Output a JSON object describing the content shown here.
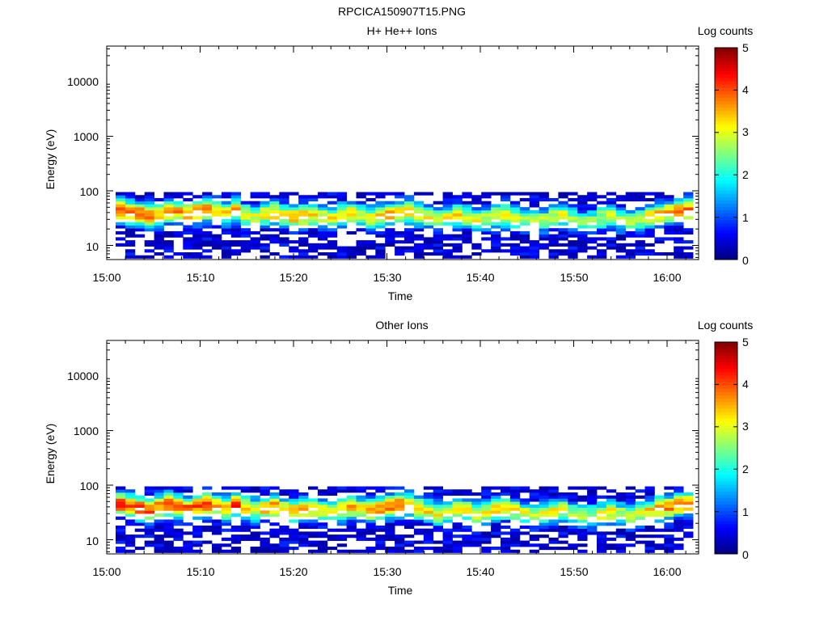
{
  "figure": {
    "title": "RPCICA150907T15.PNG"
  },
  "chart_data": [
    {
      "type": "heatmap",
      "title": "H+ He++ Ions",
      "xlabel": "Time",
      "ylabel": "Energy (eV)",
      "x_ticks": [
        "15:00",
        "15:10",
        "15:20",
        "15:30",
        "15:40",
        "15:50",
        "16:00"
      ],
      "x_range": [
        "15:00",
        "16:03"
      ],
      "y_ticks": [
        "10",
        "100",
        "1000",
        "10000"
      ],
      "y_scale": "log",
      "y_range": [
        5.5,
        45000
      ],
      "colorbar": {
        "label": "Log counts",
        "ticks": [
          "0",
          "1",
          "2",
          "3",
          "4",
          "5"
        ],
        "range": [
          0,
          5
        ],
        "colormap": "jet"
      },
      "peak_energy_eV": [
        45,
        40,
        38,
        35,
        36,
        42,
        40,
        38,
        42,
        45,
        40,
        38,
        44,
        36,
        34,
        38,
        40,
        36,
        33,
        35,
        37,
        34,
        32,
        36,
        38,
        35,
        32,
        34,
        38,
        40,
        42,
        38,
        34,
        30,
        32,
        35,
        33,
        30,
        31,
        34,
        36,
        32,
        30,
        28,
        29,
        33,
        35,
        30,
        27,
        28,
        32,
        34,
        30,
        28,
        31,
        35,
        38,
        40,
        44,
        45
      ],
      "peak_log_counts": [
        4.2,
        3.9,
        4.0,
        3.8,
        3.5,
        3.8,
        3.6,
        3.7,
        3.9,
        3.8,
        3.6,
        3.4,
        3.7,
        3.3,
        3.1,
        3.4,
        3.5,
        3.2,
        3.6,
        3.7,
        3.5,
        3.2,
        3.0,
        3.3,
        3.4,
        3.1,
        3.3,
        3.5,
        3.7,
        3.6,
        3.4,
        3.2,
        3.0,
        2.8,
        3.0,
        3.2,
        3.1,
        2.9,
        3.0,
        3.2,
        3.3,
        3.0,
        2.8,
        2.7,
        2.8,
        3.0,
        3.1,
        2.8,
        2.6,
        2.7,
        2.9,
        3.0,
        2.8,
        2.7,
        2.9,
        3.2,
        3.4,
        3.5,
        3.7,
        3.8
      ]
    },
    {
      "type": "heatmap",
      "title": "Other Ions",
      "xlabel": "Time",
      "ylabel": "Energy (eV)",
      "x_ticks": [
        "15:00",
        "15:10",
        "15:20",
        "15:30",
        "15:40",
        "15:50",
        "16:00"
      ],
      "x_range": [
        "15:00",
        "16:03"
      ],
      "y_ticks": [
        "10",
        "100",
        "1000",
        "10000"
      ],
      "y_scale": "log",
      "y_range": [
        5.5,
        45000
      ],
      "colorbar": {
        "label": "Log counts",
        "ticks": [
          "0",
          "1",
          "2",
          "3",
          "4",
          "5"
        ],
        "range": [
          0,
          5
        ],
        "colormap": "jet"
      },
      "peak_energy_eV": [
        45,
        42,
        38,
        36,
        40,
        44,
        40,
        36,
        42,
        45,
        42,
        38,
        44,
        40,
        36,
        38,
        40,
        35,
        34,
        36,
        38,
        34,
        32,
        36,
        40,
        36,
        34,
        38,
        42,
        44,
        42,
        38,
        34,
        30,
        32,
        36,
        34,
        30,
        32,
        36,
        38,
        34,
        30,
        28,
        30,
        34,
        36,
        30,
        28,
        28,
        30,
        32,
        30,
        28,
        30,
        34,
        38,
        40,
        44,
        46
      ],
      "peak_log_counts": [
        4.3,
        4.1,
        4.2,
        4.0,
        3.9,
        4.2,
        4.0,
        4.1,
        4.2,
        4.1,
        3.8,
        3.6,
        4.0,
        3.4,
        3.2,
        3.6,
        3.8,
        3.4,
        3.5,
        3.6,
        3.4,
        3.2,
        3.0,
        3.4,
        3.6,
        3.3,
        3.5,
        3.7,
        4.0,
        3.9,
        3.6,
        3.4,
        3.2,
        3.0,
        3.1,
        3.3,
        3.2,
        3.0,
        3.1,
        3.3,
        3.5,
        3.2,
        3.0,
        2.8,
        2.9,
        3.1,
        3.2,
        2.9,
        2.7,
        2.8,
        3.0,
        3.1,
        2.9,
        2.8,
        3.0,
        3.3,
        3.5,
        3.7,
        3.9,
        4.0
      ]
    }
  ]
}
